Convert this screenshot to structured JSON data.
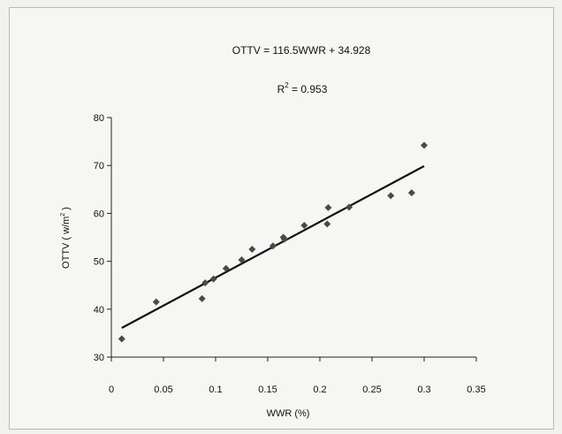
{
  "chart_data": {
    "type": "scatter",
    "title": "OTTV = 116.5WWR + 34.928",
    "subtitle_prefix": "R",
    "subtitle_sup": "2",
    "subtitle_value": " = 0.953",
    "xlabel": "WWR (%)",
    "ylabel_main": "OTTV ( w/m",
    "ylabel_sup": "2",
    "ylabel_end": " )",
    "xlim": [
      0,
      0.35
    ],
    "ylim": [
      30,
      80
    ],
    "xticks": [
      0,
      0.05,
      0.1,
      0.15,
      0.2,
      0.25,
      0.3,
      0.35
    ],
    "xtick_labels": [
      "0",
      "0.05",
      "0.1",
      "0.15",
      "0.2",
      "0.25",
      "0.3",
      "0.35"
    ],
    "yticks": [
      30,
      40,
      50,
      60,
      70,
      80
    ],
    "ytick_labels": [
      "30",
      "40",
      "50",
      "60",
      "70",
      "80"
    ],
    "grid": false,
    "legend": "none",
    "series": [
      {
        "points": [
          [
            0.01,
            33.8
          ],
          [
            0.043,
            41.5
          ],
          [
            0.087,
            42.2
          ],
          [
            0.09,
            45.5
          ],
          [
            0.098,
            46.3
          ],
          [
            0.11,
            48.5
          ],
          [
            0.125,
            50.3
          ],
          [
            0.135,
            52.5
          ],
          [
            0.155,
            53.2
          ],
          [
            0.165,
            55.0
          ],
          [
            0.166,
            54.6
          ],
          [
            0.185,
            57.5
          ],
          [
            0.207,
            57.8
          ],
          [
            0.208,
            61.2
          ],
          [
            0.228,
            61.3
          ],
          [
            0.268,
            63.7
          ],
          [
            0.288,
            64.3
          ],
          [
            0.3,
            74.2
          ]
        ],
        "color": "#4a4a4a"
      }
    ],
    "trendline": {
      "slope": 116.5,
      "intercept": 34.928,
      "x_from": 0.01,
      "x_to": 0.3,
      "color": "#111111"
    }
  }
}
